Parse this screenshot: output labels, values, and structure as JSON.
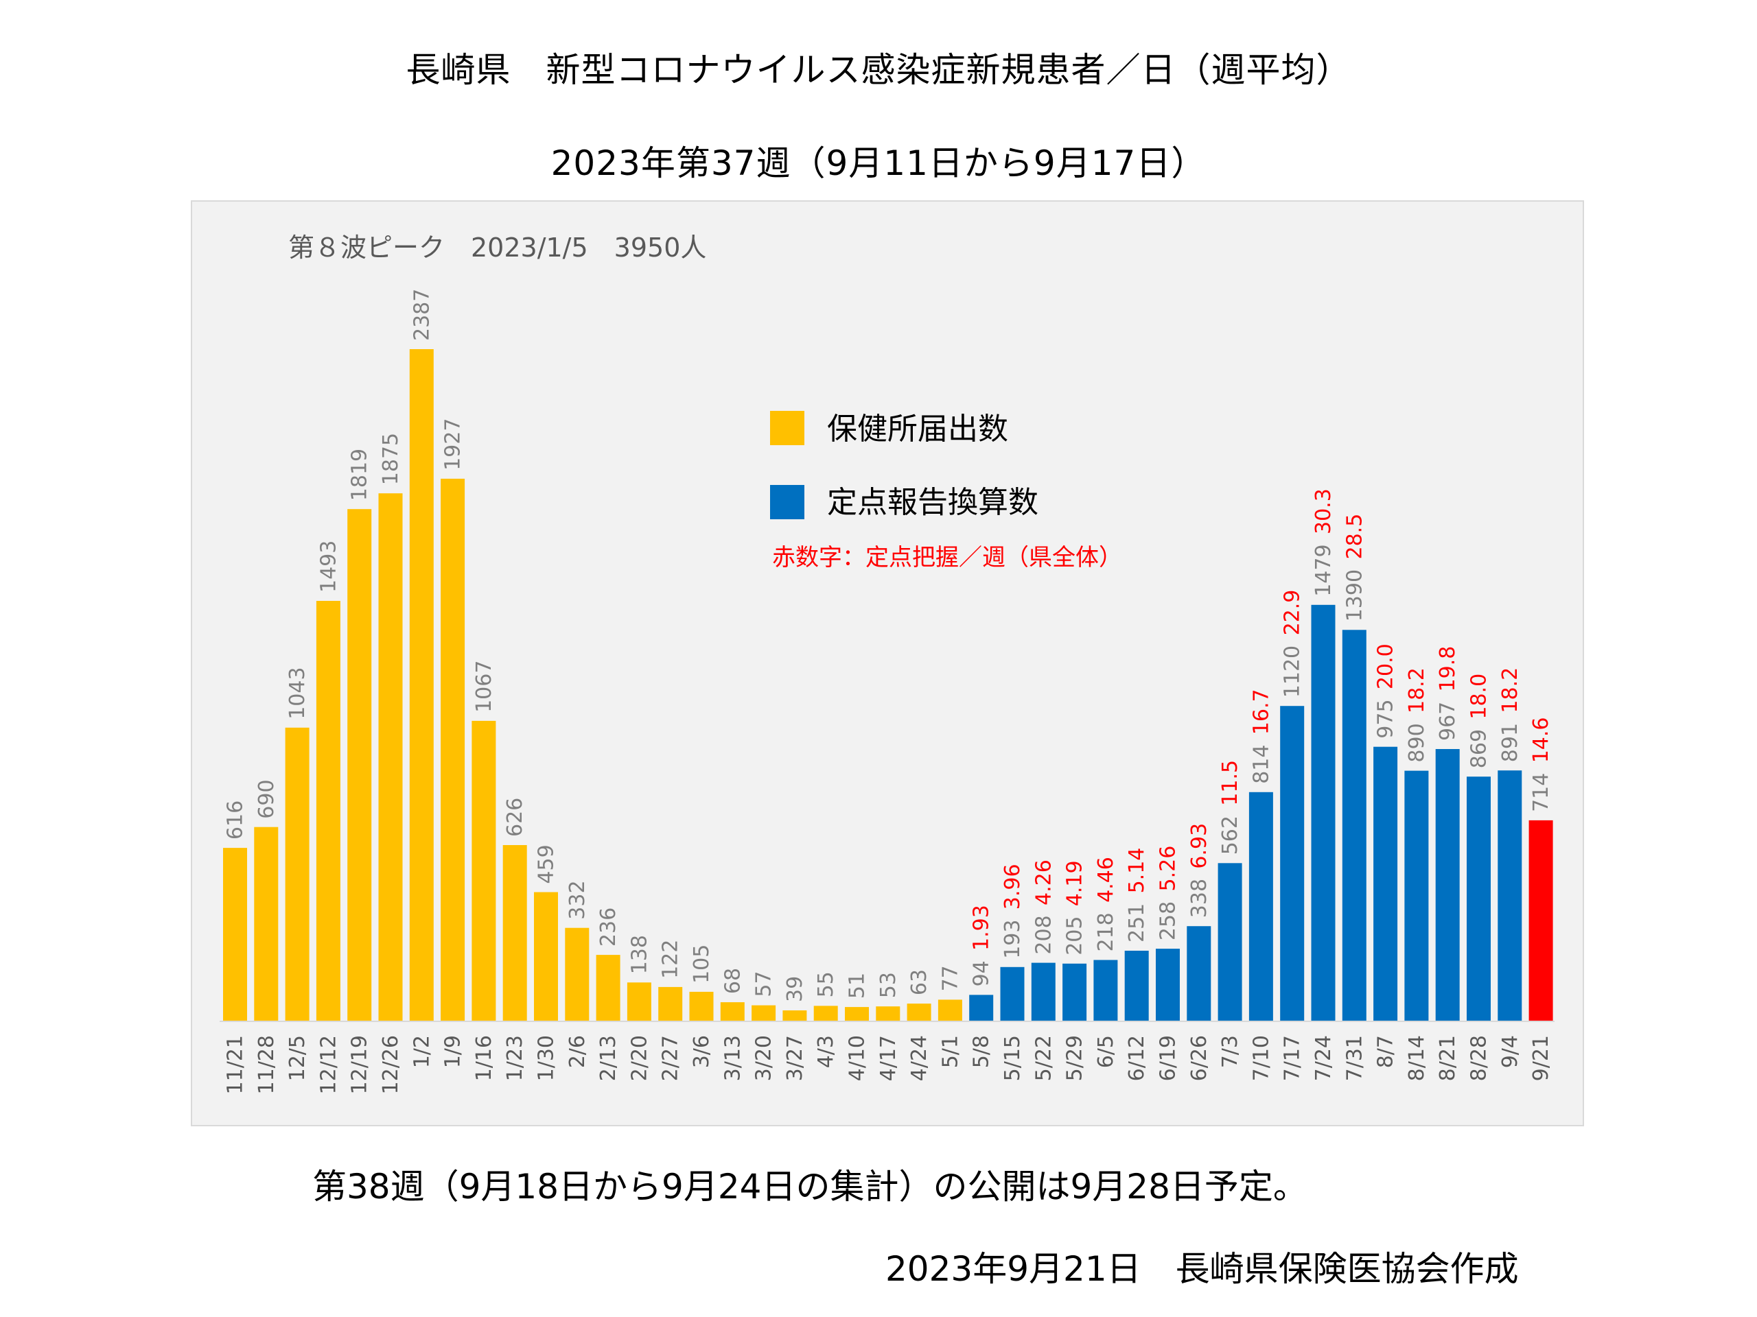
{
  "header": {
    "title": "長崎県　新型コロナウイルス感染症新規患者／日（週平均）",
    "subtitle": "2023年第37週（9月11日から9月17日）"
  },
  "footer": {
    "publication_note": "第38週（9月18日から9月24日の集計）の公開は9月28日予定。",
    "credit": "2023年9月21日　長崎県保険医協会作成"
  },
  "colors": {
    "health_center": "#FFC000",
    "sentinel": "#0070C0",
    "latest": "#FF0000",
    "value_label": "#7f7f7f",
    "red_label": "#ff0000",
    "background": "#f2f2f2"
  },
  "chart_data": {
    "type": "bar",
    "title": "長崎県　新型コロナウイルス感染症新規患者／日（週平均）",
    "subtitle": "2023年第37週（9月11日から9月17日）",
    "annotation": "第８波ピーク　2023/1/5　3950人",
    "xlabel": "",
    "ylabel": "",
    "ylim": [
      0,
      2387
    ],
    "grid": false,
    "legend": {
      "position": "upper-center",
      "entries": [
        {
          "name": "保健所届出数",
          "color": "#FFC000"
        },
        {
          "name": "定点報告換算数",
          "color": "#0070C0"
        }
      ],
      "note": "赤数字：定点把握／週（県全体）"
    },
    "categories": [
      "11/21",
      "11/28",
      "12/5",
      "12/12",
      "12/19",
      "12/26",
      "1/2",
      "1/9",
      "1/16",
      "1/23",
      "1/30",
      "2/6",
      "2/13",
      "2/20",
      "2/27",
      "3/6",
      "3/13",
      "3/20",
      "3/27",
      "4/3",
      "4/10",
      "4/17",
      "4/24",
      "5/1",
      "5/8",
      "5/15",
      "5/22",
      "5/29",
      "6/5",
      "6/12",
      "6/19",
      "6/26",
      "7/3",
      "7/10",
      "7/17",
      "7/24",
      "7/31",
      "8/7",
      "8/14",
      "8/21",
      "8/28",
      "9/4",
      "9/21"
    ],
    "values": [
      616,
      690,
      1043,
      1493,
      1819,
      1875,
      2387,
      1927,
      1067,
      626,
      459,
      332,
      236,
      138,
      122,
      105,
      68,
      57,
      39,
      55,
      51,
      53,
      63,
      77,
      94,
      193,
      208,
      205,
      218,
      251,
      258,
      338,
      562,
      814,
      1120,
      1479,
      1390,
      975,
      890,
      967,
      869,
      891,
      714
    ],
    "series_type": [
      "health_center",
      "health_center",
      "health_center",
      "health_center",
      "health_center",
      "health_center",
      "health_center",
      "health_center",
      "health_center",
      "health_center",
      "health_center",
      "health_center",
      "health_center",
      "health_center",
      "health_center",
      "health_center",
      "health_center",
      "health_center",
      "health_center",
      "health_center",
      "health_center",
      "health_center",
      "health_center",
      "health_center",
      "sentinel",
      "sentinel",
      "sentinel",
      "sentinel",
      "sentinel",
      "sentinel",
      "sentinel",
      "sentinel",
      "sentinel",
      "sentinel",
      "sentinel",
      "sentinel",
      "sentinel",
      "sentinel",
      "sentinel",
      "sentinel",
      "sentinel",
      "sentinel",
      "latest"
    ],
    "red_values": [
      null,
      null,
      null,
      null,
      null,
      null,
      null,
      null,
      null,
      null,
      null,
      null,
      null,
      null,
      null,
      null,
      null,
      null,
      null,
      null,
      null,
      null,
      null,
      null,
      "1.93",
      "3.96",
      "4.26",
      "4.19",
      "4.46",
      "5.14",
      "5.26",
      "6.93",
      "11.5",
      "16.7",
      "22.9",
      "30.3",
      "28.5",
      "20.0",
      "18.2",
      "19.8",
      "18.0",
      "18.2",
      "14.6"
    ]
  }
}
